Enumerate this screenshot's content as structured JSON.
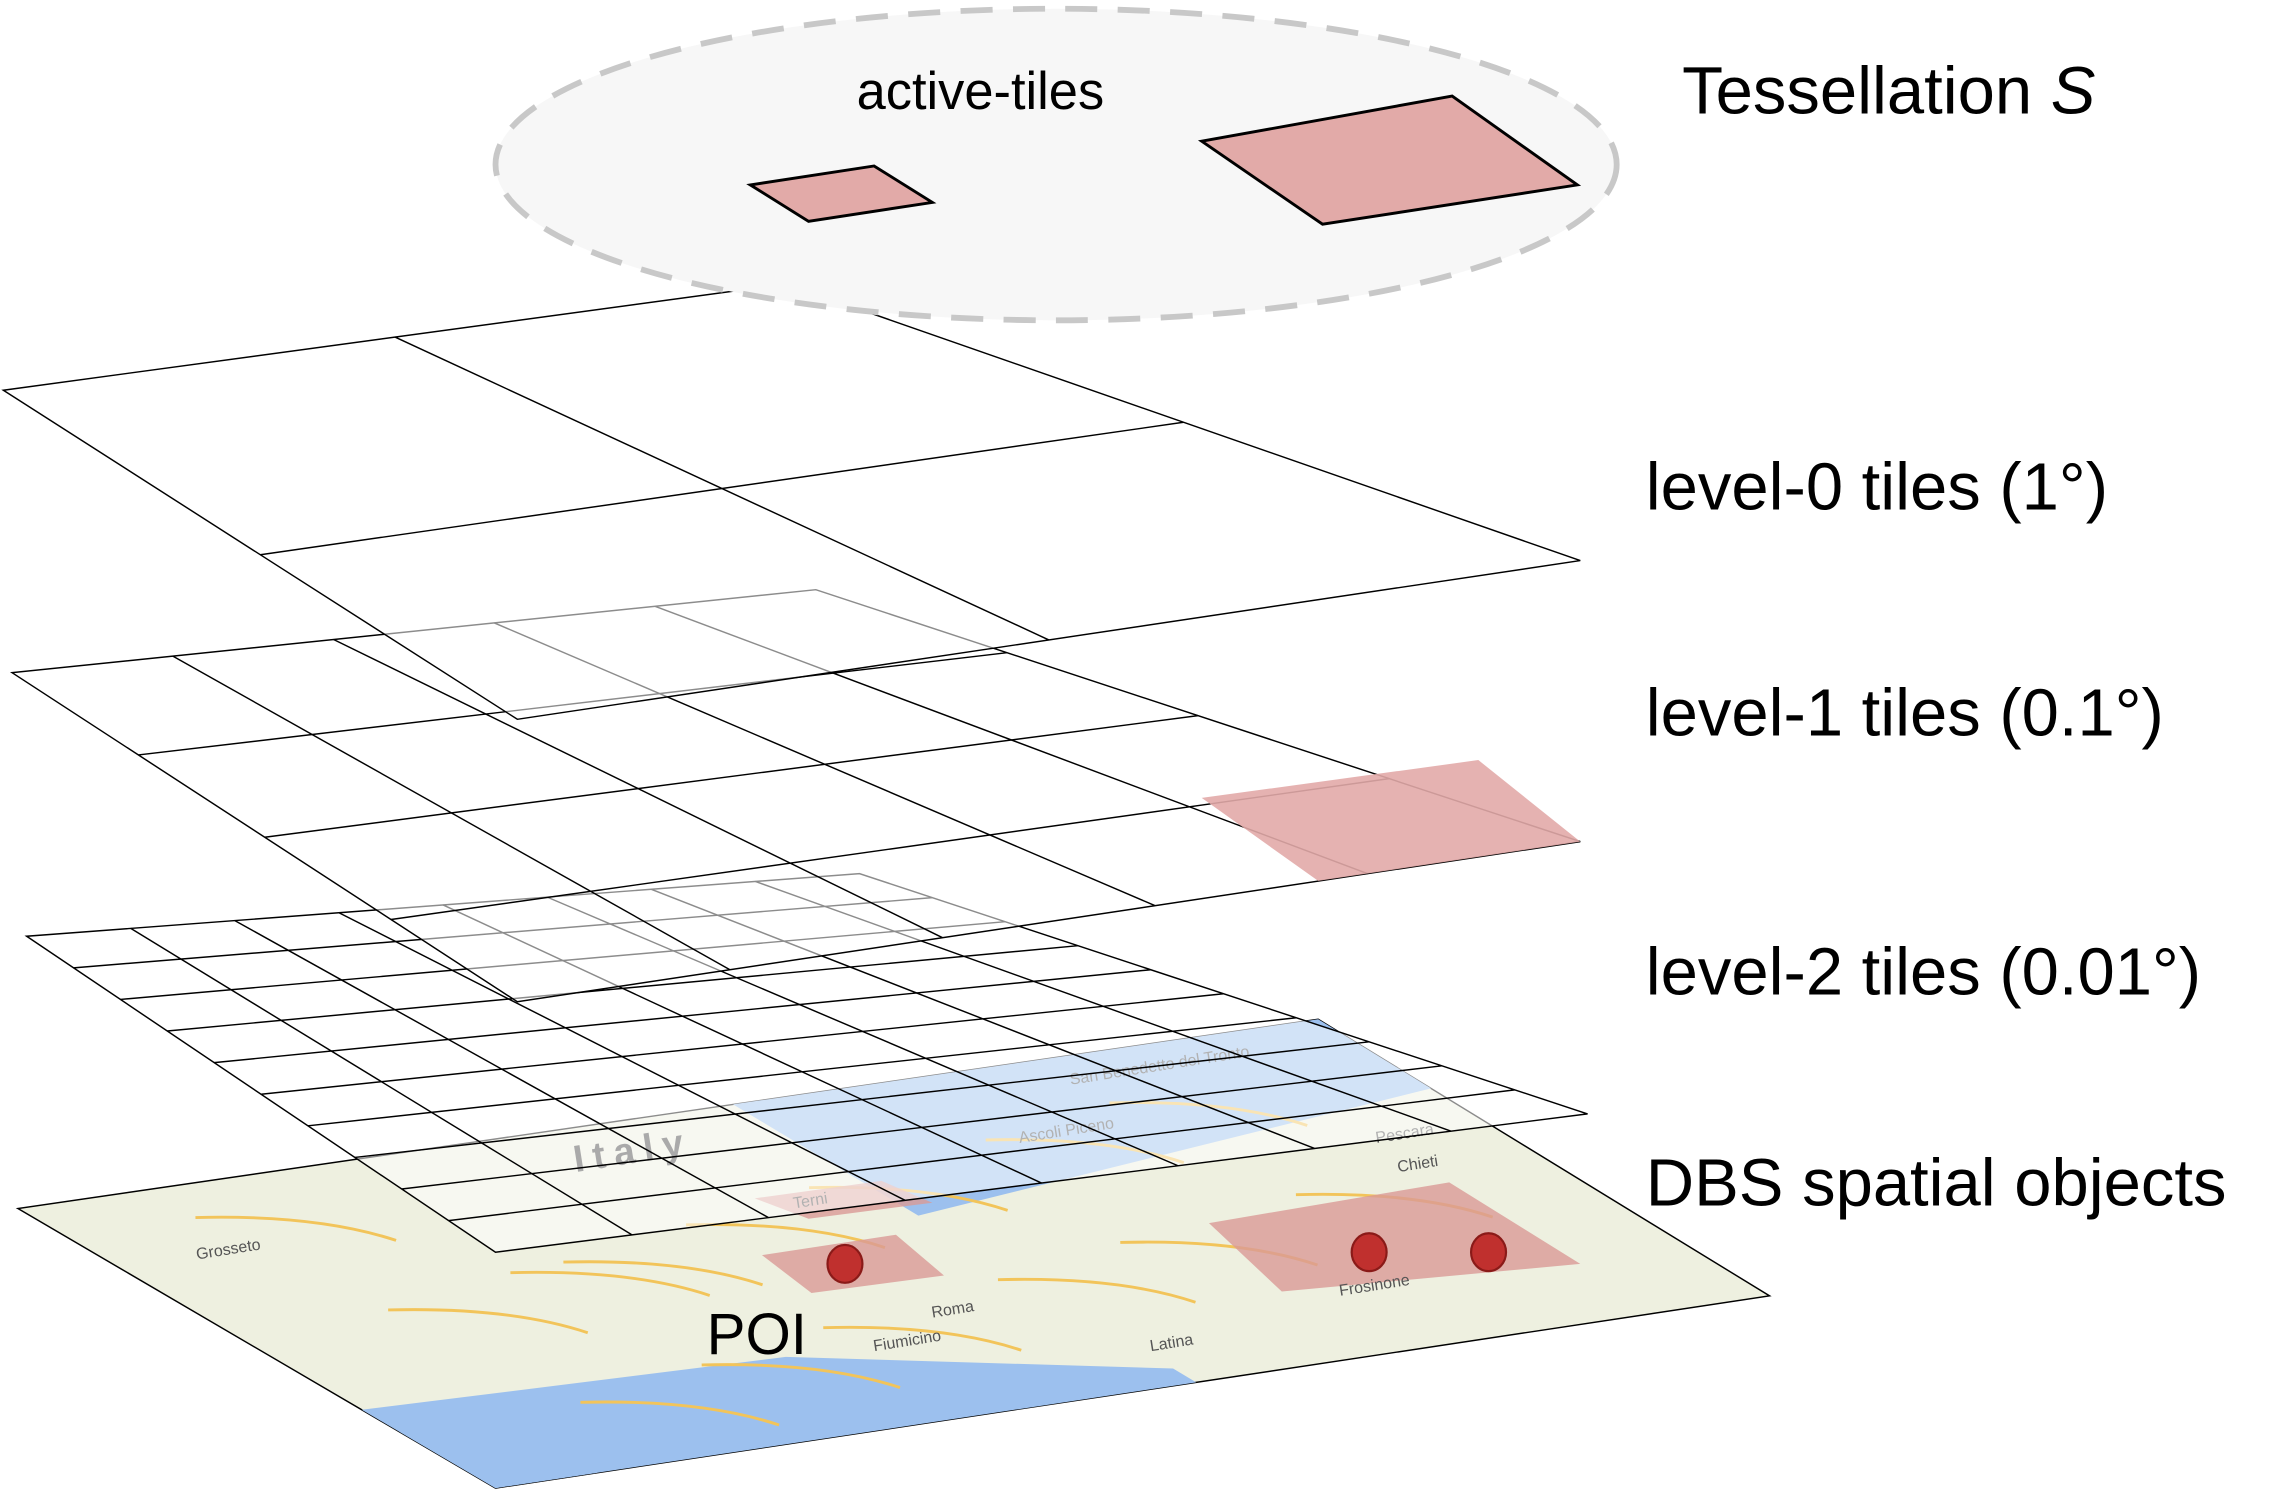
{
  "header": {
    "active_tiles": "active-tiles",
    "tessellation": "Tessellation",
    "tessellation_symbol": "S"
  },
  "layers": [
    {
      "label": "level-0 tiles (1°)"
    },
    {
      "label": "level-1 tiles (0.1°)"
    },
    {
      "label": "level-2 tiles (0.01°)"
    },
    {
      "label": "DBS spatial objects"
    }
  ],
  "poi_label": "POI",
  "map_labels": [
    "Italy",
    "Grosseto",
    "Terni",
    "Roma",
    "Fiumicino",
    "Latina",
    "Frosinone",
    "Pescara",
    "Chieti",
    "Ascoli Piceno",
    "San Benedetto del Tronto"
  ]
}
